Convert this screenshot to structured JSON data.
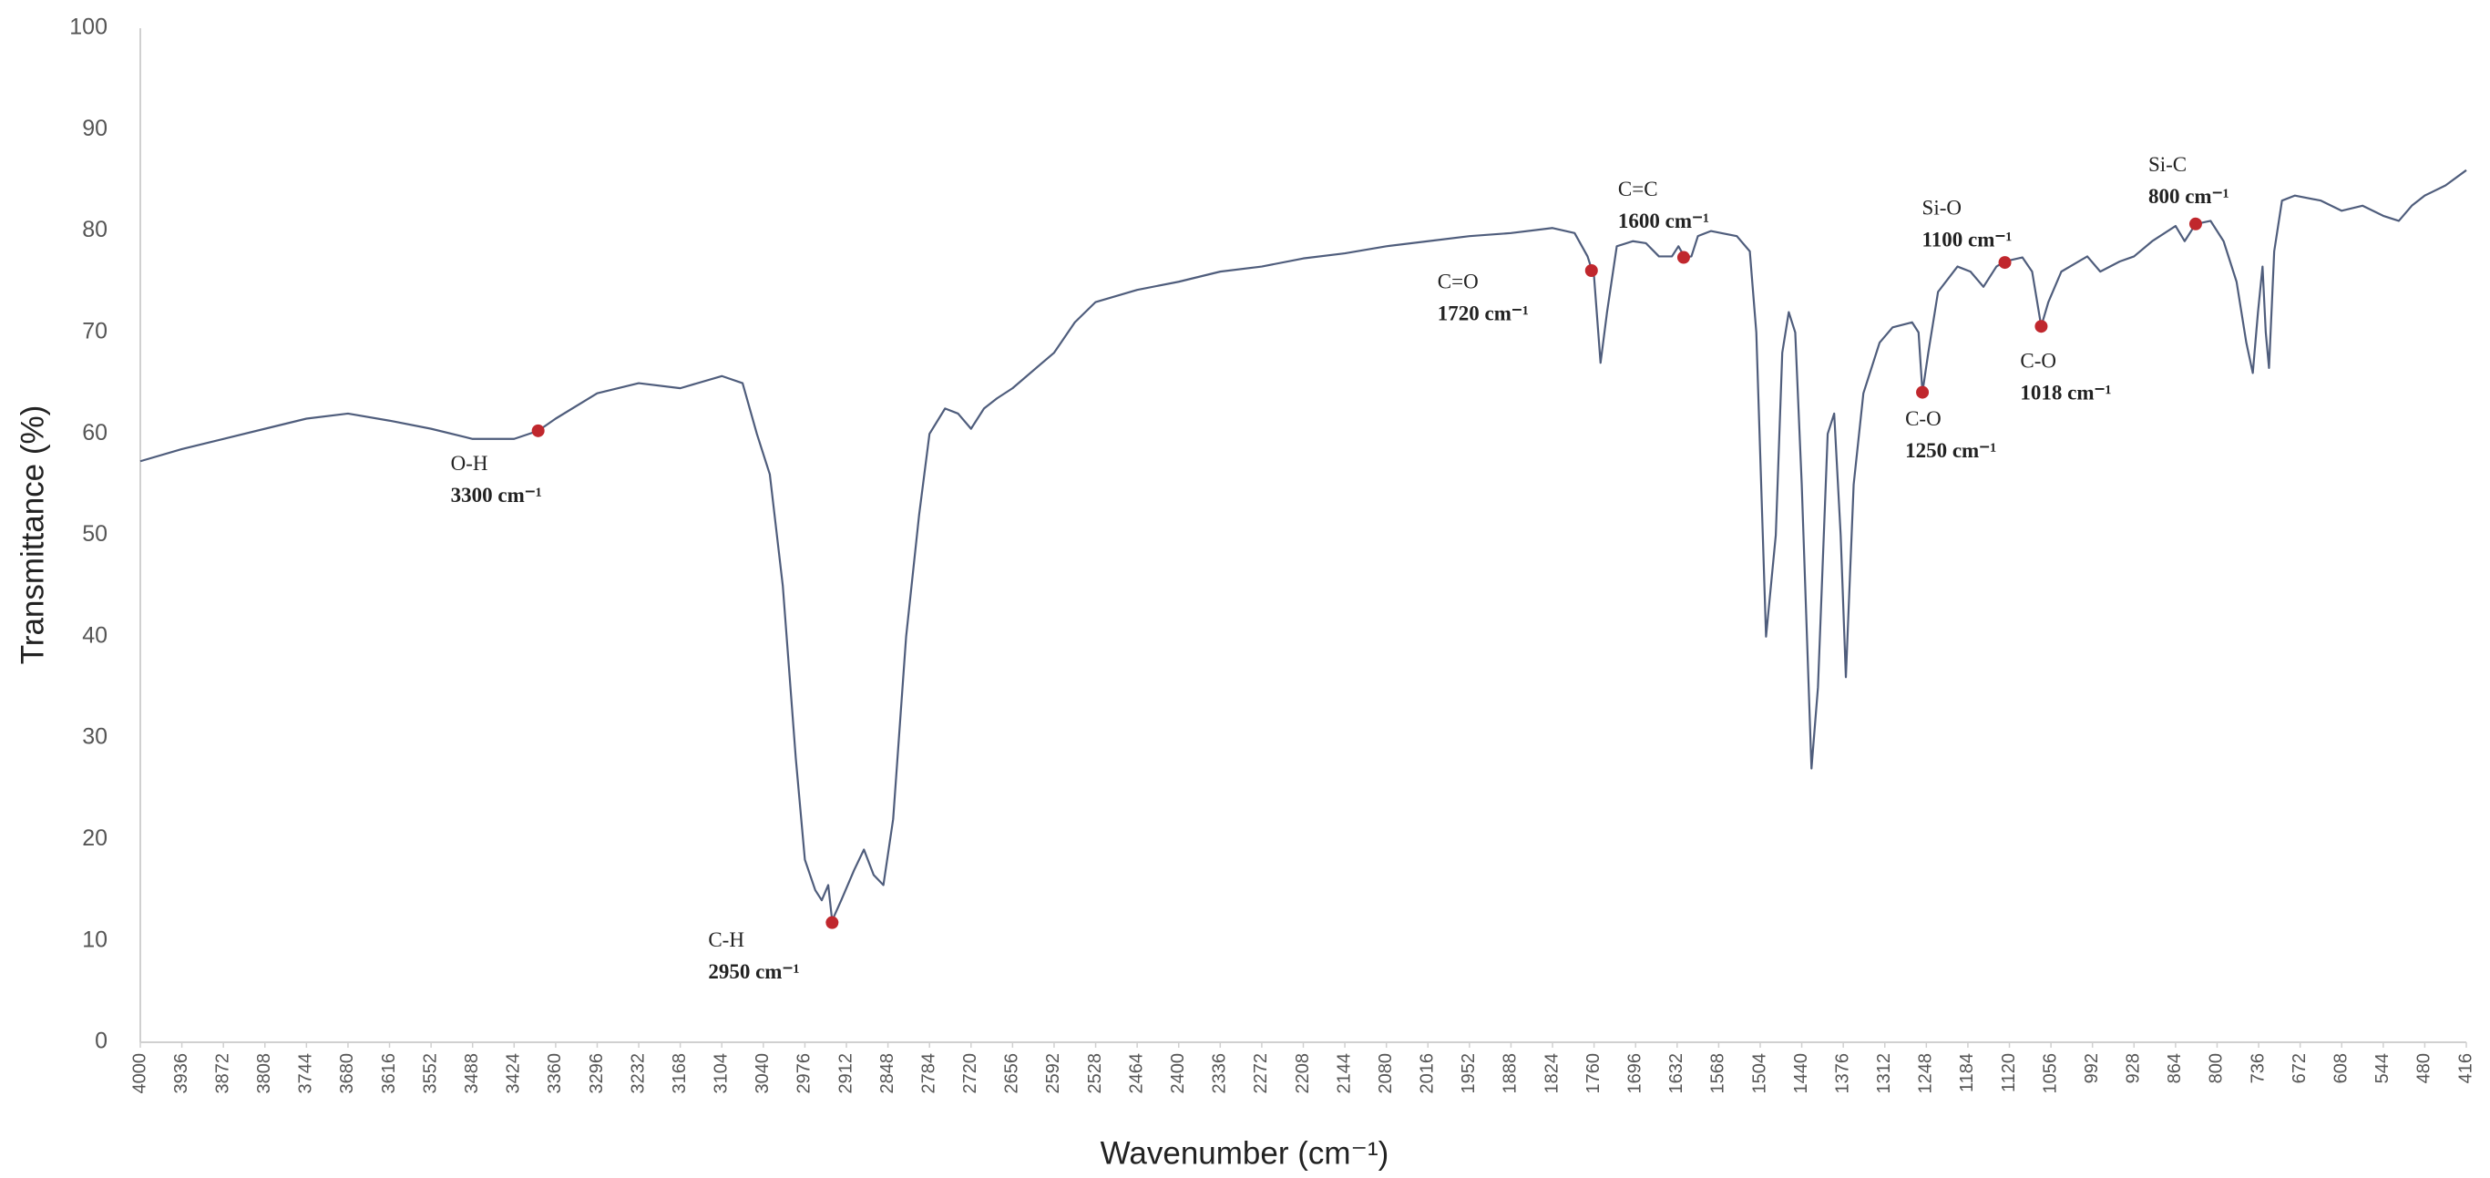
{
  "chart_data": {
    "type": "line",
    "xlabel": "Wavenumber (cm⁻¹)",
    "ylabel": "Transmittance (%)",
    "xlim": [
      4000,
      416
    ],
    "ylim": [
      0,
      100
    ],
    "yticks": [
      0,
      10,
      20,
      30,
      40,
      50,
      60,
      70,
      80,
      90,
      100
    ],
    "xticks": [
      4000,
      3936,
      3872,
      3808,
      3744,
      3680,
      3616,
      3552,
      3488,
      3424,
      3360,
      3296,
      3232,
      3168,
      3104,
      3040,
      2976,
      2912,
      2848,
      2784,
      2720,
      2656,
      2592,
      2528,
      2464,
      2400,
      2336,
      2272,
      2208,
      2144,
      2080,
      2016,
      1952,
      1888,
      1824,
      1760,
      1696,
      1632,
      1568,
      1504,
      1440,
      1376,
      1312,
      1248,
      1184,
      1120,
      1056,
      992,
      928,
      864,
      800,
      736,
      672,
      608,
      544,
      480,
      416
    ],
    "series": [
      {
        "color": "#4f5d7c",
        "x": [
          4000,
          3936,
          3872,
          3808,
          3744,
          3680,
          3616,
          3552,
          3488,
          3424,
          3387,
          3360,
          3296,
          3232,
          3168,
          3104,
          3072,
          3050,
          3030,
          3010,
          2990,
          2976,
          2960,
          2950,
          2940,
          2934,
          2920,
          2900,
          2885,
          2870,
          2855,
          2840,
          2820,
          2800,
          2784,
          2760,
          2740,
          2720,
          2700,
          2680,
          2656,
          2592,
          2560,
          2528,
          2464,
          2400,
          2336,
          2272,
          2208,
          2144,
          2080,
          2016,
          1952,
          1888,
          1824,
          1790,
          1770,
          1760,
          1750,
          1740,
          1725,
          1700,
          1680,
          1660,
          1640,
          1630,
          1620,
          1610,
          1600,
          1580,
          1540,
          1520,
          1510,
          1495,
          1480,
          1470,
          1460,
          1450,
          1440,
          1425,
          1415,
          1400,
          1390,
          1380,
          1372,
          1360,
          1345,
          1320,
          1300,
          1270,
          1260,
          1254,
          1245,
          1230,
          1200,
          1180,
          1160,
          1140,
          1127,
          1100,
          1085,
          1071,
          1060,
          1040,
          1000,
          980,
          950,
          928,
          900,
          864,
          850,
          833,
          810,
          790,
          770,
          755,
          745,
          737,
          730,
          725,
          720,
          712,
          700,
          680,
          640,
          608,
          576,
          544,
          520,
          500,
          480,
          448,
          416
        ],
        "values": [
          57.3,
          58.5,
          59.5,
          60.5,
          61.5,
          62,
          61.3,
          60.5,
          59.5,
          59.5,
          60.3,
          61.5,
          64,
          65,
          64.5,
          65.7,
          65,
          60,
          56,
          45,
          28,
          18,
          15,
          14,
          15.5,
          12,
          14,
          17,
          19,
          16.5,
          15.5,
          22,
          40,
          52,
          60,
          62.5,
          62,
          60.5,
          62.5,
          63.5,
          64.5,
          68,
          71,
          73,
          74.2,
          75,
          76,
          76.5,
          77.3,
          77.8,
          78.5,
          79,
          79.5,
          79.8,
          80.3,
          79.8,
          77.5,
          75.5,
          67,
          72,
          78.5,
          79,
          78.8,
          77.5,
          77.5,
          78.5,
          77.4,
          77.5,
          79.5,
          80,
          79.5,
          78,
          70,
          40,
          50,
          68,
          72,
          70,
          55,
          27,
          35,
          60,
          62,
          50,
          36,
          55,
          64,
          69,
          70.5,
          71,
          70,
          64.1,
          68,
          74,
          76.5,
          76,
          74.5,
          76.5,
          77,
          77.4,
          76,
          70.6,
          73,
          76,
          77.5,
          76,
          77,
          77.5,
          79,
          80.5,
          79,
          80.7,
          81,
          79,
          75,
          69,
          66,
          72,
          76.5,
          70,
          66.5,
          78,
          83,
          83.5,
          83,
          82,
          82.5,
          81.5,
          81,
          82.5,
          83.5,
          84.5,
          86
        ]
      }
    ],
    "annotations": [
      {
        "label": "O-H",
        "text": "3300 cm⁻¹",
        "x": 3387,
        "y": 60.3,
        "color": "#c0272d"
      },
      {
        "label": "C-H",
        "text": "2950 cm⁻¹",
        "x": 2934,
        "y": 11.8,
        "color": "#c0272d"
      },
      {
        "label": "C=O",
        "text": "1720 cm⁻¹",
        "x": 1764,
        "y": 76.1,
        "color": "#c0272d"
      },
      {
        "label": "C=C",
        "text": "1600 cm⁻¹",
        "x": 1622,
        "y": 77.4,
        "color": "#c0272d"
      },
      {
        "label": "C-O",
        "text": "1250 cm⁻¹",
        "x": 1254,
        "y": 64.1,
        "color": "#c0272d"
      },
      {
        "label": "Si-O",
        "text": "1100 cm⁻¹",
        "x": 1127,
        "y": 76.9,
        "color": "#c0272d"
      },
      {
        "label": "C-O",
        "text": "1018 cm⁻¹",
        "x": 1071,
        "y": 70.6,
        "color": "#c0272d"
      },
      {
        "label": "Si-C",
        "text": "800 cm⁻¹",
        "x": 833,
        "y": 80.7,
        "color": "#c0272d"
      }
    ]
  }
}
